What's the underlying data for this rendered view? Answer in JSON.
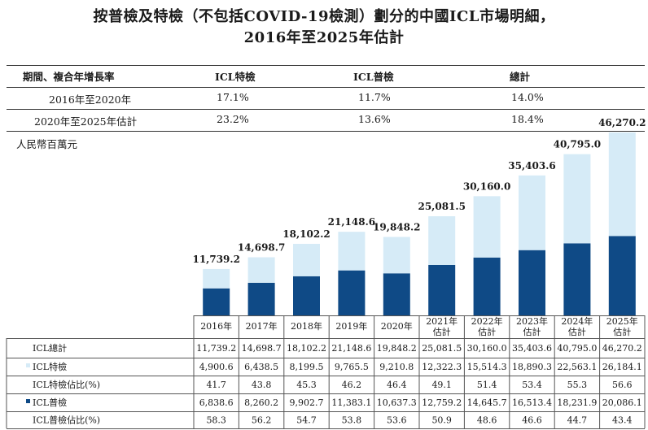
{
  "title_line1": "按普檢及特檢（不包括COVID-19檢測）劃分的中國ICL市場明細，",
  "title_line2": "2016年至2025年估計",
  "cagr_table": {
    "headers": [
      "期間、複合年增長率",
      "ICL特檢",
      "ICL普檢",
      "總計"
    ],
    "rows": [
      [
        "2016年至2020年",
        "17.1%",
        "11.7%",
        "14.0%"
      ],
      [
        "2020年至2025年估計",
        "23.2%",
        "13.6%",
        "18.4%"
      ]
    ]
  },
  "unit": "人民幣百萬元",
  "colors": {
    "special": "#d6ebf7",
    "general": "#0f4a86"
  },
  "chart_data": {
    "type": "bar",
    "stacked": true,
    "categories": [
      "2016年",
      "2017年",
      "2018年",
      "2019年",
      "2020年",
      "2021年估計",
      "2022年估計",
      "2023年估計",
      "2024年估計",
      "2025年估計"
    ],
    "category_lines": [
      [
        "2016年"
      ],
      [
        "2017年"
      ],
      [
        "2018年"
      ],
      [
        "2019年"
      ],
      [
        "2020年"
      ],
      [
        "2021年",
        "估計"
      ],
      [
        "2022年",
        "估計"
      ],
      [
        "2023年",
        "估計"
      ],
      [
        "2024年",
        "估計"
      ],
      [
        "2025年",
        "估計"
      ]
    ],
    "totals": [
      11739.2,
      14698.7,
      18102.2,
      21148.6,
      19848.2,
      25081.5,
      30160.0,
      35403.6,
      40795.0,
      46270.2
    ],
    "total_labels": [
      "11,739.2",
      "14,698.7",
      "18,102.2",
      "21,148.6",
      "19,848.2",
      "25,081.5",
      "30,160.0",
      "35,403.6",
      "40,795.0",
      "46,270.2"
    ],
    "series": [
      {
        "name": "ICL普檢",
        "color": "#0f4a86",
        "values": [
          6838.6,
          8260.2,
          9902.7,
          11383.1,
          10637.3,
          12759.2,
          14645.7,
          16513.4,
          18231.9,
          20086.1
        ]
      },
      {
        "name": "ICL特檢",
        "color": "#d6ebf7",
        "values": [
          4900.6,
          6438.5,
          8199.5,
          9765.5,
          9210.8,
          12322.3,
          15514.3,
          18890.3,
          22563.1,
          26184.1
        ]
      }
    ],
    "table": [
      {
        "label": "ICL總計",
        "swatch": null,
        "cells": [
          "11,739.2",
          "14,698.7",
          "18,102.2",
          "21,148.6",
          "19,848.2",
          "25,081.5",
          "30,160.0",
          "35,403.6",
          "40,795.0",
          "46,270.2"
        ]
      },
      {
        "label": "ICL特檢",
        "swatch": "#d6ebf7",
        "cells": [
          "4,900.6",
          "6,438.5",
          "8,199.5",
          "9,765.5",
          "9,210.8",
          "12,322.3",
          "15,514.3",
          "18,890.3",
          "22,563.1",
          "26,184.1"
        ]
      },
      {
        "label": "ICL特檢佔比(%)",
        "swatch": null,
        "cells": [
          "41.7",
          "43.8",
          "45.3",
          "46.2",
          "46.4",
          "49.1",
          "51.4",
          "53.4",
          "55.3",
          "56.6"
        ]
      },
      {
        "label": "ICL普檢",
        "swatch": "#0f4a86",
        "cells": [
          "6,838.6",
          "8,260.2",
          "9,902.7",
          "11,383.1",
          "10,637.3",
          "12,759.2",
          "14,645.7",
          "16,513.4",
          "18,231.9",
          "20,086.1"
        ]
      },
      {
        "label": "ICL普檢佔比(%)",
        "swatch": null,
        "cells": [
          "58.3",
          "56.2",
          "54.7",
          "53.8",
          "53.6",
          "50.9",
          "48.6",
          "46.6",
          "44.7",
          "43.4"
        ]
      }
    ]
  }
}
